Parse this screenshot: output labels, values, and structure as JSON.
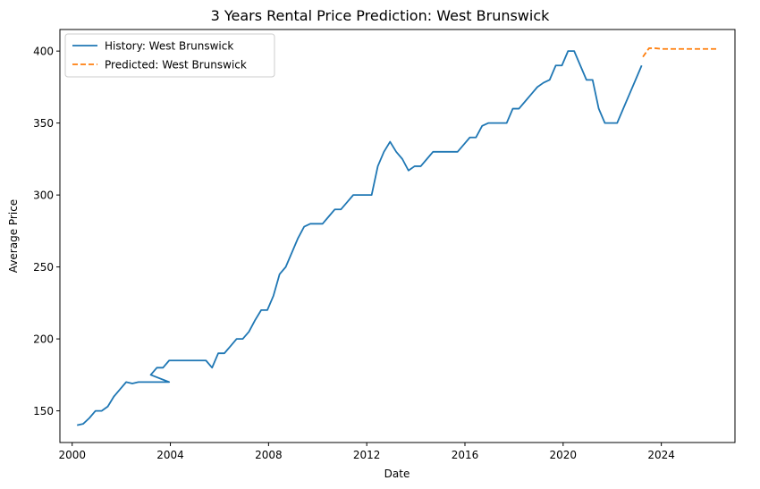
{
  "chart_data": {
    "type": "line",
    "title": "3 Years Rental Price Prediction: West Brunswick",
    "xlabel": "Date",
    "ylabel": "Average Price",
    "xlim": [
      1999.5,
      2027.0
    ],
    "ylim": [
      128,
      415
    ],
    "x_ticks": [
      2000,
      2004,
      2008,
      2012,
      2016,
      2020,
      2024
    ],
    "y_ticks": [
      150,
      200,
      250,
      300,
      350,
      400
    ],
    "grid": false,
    "legend": "top-left",
    "series": [
      {
        "name": "History: West Brunswick",
        "color": "#1f77b4",
        "style": "solid",
        "points": [
          [
            2000.2,
            140
          ],
          [
            2000.45,
            141
          ],
          [
            2000.7,
            145
          ],
          [
            2000.95,
            150
          ],
          [
            2001.2,
            150
          ],
          [
            2001.45,
            153
          ],
          [
            2001.7,
            160
          ],
          [
            2001.95,
            165
          ],
          [
            2002.2,
            170
          ],
          [
            2002.45,
            169
          ],
          [
            2002.7,
            170
          ],
          [
            2002.95,
            170
          ],
          [
            2003.2,
            170
          ],
          [
            2003.45,
            170
          ],
          [
            2003.7,
            170
          ],
          [
            2003.95,
            170
          ],
          [
            2003.2,
            175
          ],
          [
            2003.45,
            180
          ],
          [
            2003.7,
            180
          ],
          [
            2003.95,
            185
          ],
          [
            2004.2,
            185
          ],
          [
            2004.45,
            185
          ],
          [
            2004.7,
            185
          ],
          [
            2004.95,
            185
          ],
          [
            2005.2,
            185
          ],
          [
            2005.45,
            185
          ],
          [
            2005.7,
            180
          ],
          [
            2005.95,
            190
          ],
          [
            2006.2,
            190
          ],
          [
            2006.45,
            195
          ],
          [
            2006.7,
            200
          ],
          [
            2006.95,
            200
          ],
          [
            2007.2,
            205
          ],
          [
            2007.45,
            213
          ],
          [
            2007.7,
            220
          ],
          [
            2007.95,
            220
          ],
          [
            2008.2,
            230
          ],
          [
            2008.45,
            245
          ],
          [
            2008.7,
            250
          ],
          [
            2008.95,
            260
          ],
          [
            2009.2,
            270
          ],
          [
            2009.45,
            278
          ],
          [
            2009.7,
            280
          ],
          [
            2009.95,
            280
          ],
          [
            2010.2,
            280
          ],
          [
            2010.45,
            285
          ],
          [
            2010.7,
            290
          ],
          [
            2010.95,
            290
          ],
          [
            2011.2,
            295
          ],
          [
            2011.45,
            300
          ],
          [
            2011.7,
            300
          ],
          [
            2011.95,
            300
          ],
          [
            2012.2,
            300
          ],
          [
            2012.45,
            320
          ],
          [
            2012.7,
            330
          ],
          [
            2012.95,
            337
          ],
          [
            2013.2,
            330
          ],
          [
            2013.45,
            325
          ],
          [
            2013.7,
            317
          ],
          [
            2013.95,
            320
          ],
          [
            2014.2,
            320
          ],
          [
            2014.45,
            325
          ],
          [
            2014.7,
            330
          ],
          [
            2014.95,
            330
          ],
          [
            2015.2,
            330
          ],
          [
            2015.45,
            330
          ],
          [
            2015.7,
            330
          ],
          [
            2015.95,
            335
          ],
          [
            2016.2,
            340
          ],
          [
            2016.45,
            340
          ],
          [
            2016.7,
            348
          ],
          [
            2016.95,
            350
          ],
          [
            2017.2,
            350
          ],
          [
            2017.45,
            350
          ],
          [
            2017.7,
            350
          ],
          [
            2017.95,
            360
          ],
          [
            2018.2,
            360
          ],
          [
            2018.45,
            365
          ],
          [
            2018.7,
            370
          ],
          [
            2018.95,
            375
          ],
          [
            2019.2,
            378
          ],
          [
            2019.45,
            380
          ],
          [
            2019.7,
            390
          ],
          [
            2019.95,
            390
          ],
          [
            2020.2,
            400
          ],
          [
            2020.45,
            400
          ],
          [
            2020.7,
            390
          ],
          [
            2020.95,
            380
          ],
          [
            2021.2,
            380
          ],
          [
            2021.45,
            360
          ],
          [
            2021.7,
            350
          ],
          [
            2021.95,
            350
          ],
          [
            2022.2,
            350
          ],
          [
            2022.45,
            360
          ],
          [
            2022.7,
            370
          ],
          [
            2022.95,
            380
          ],
          [
            2023.2,
            390
          ]
        ]
      },
      {
        "name": "Predicted: West Brunswick",
        "color": "#ff7f0e",
        "style": "dashed",
        "points": [
          [
            2023.25,
            396
          ],
          [
            2023.5,
            402
          ],
          [
            2023.75,
            402
          ],
          [
            2024.0,
            401.5
          ],
          [
            2024.5,
            401.5
          ],
          [
            2025.0,
            401.5
          ],
          [
            2025.5,
            401.5
          ],
          [
            2026.0,
            401.5
          ],
          [
            2026.3,
            401.5
          ]
        ]
      }
    ]
  }
}
